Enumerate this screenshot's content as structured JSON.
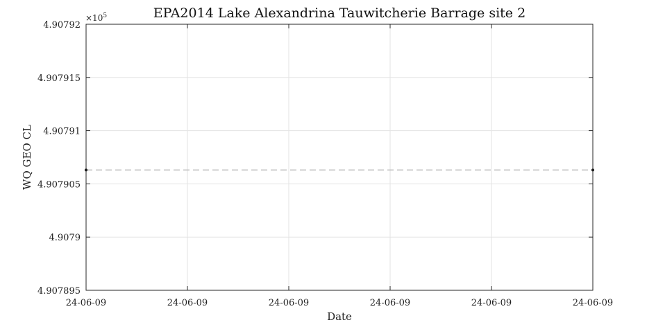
{
  "chart_data": {
    "type": "line",
    "title": "EPA2014 Lake Alexandrina Tauwitcherie Barrage site 2",
    "xlabel": "Date",
    "ylabel": "WQ GEO CL",
    "y_exponent_label": "×10",
    "y_exponent_power": "5",
    "ylim": [
      4.907895,
      4.90792
    ],
    "y_ticks": [
      4.907895,
      4.9079,
      4.907905,
      4.90791,
      4.907915,
      4.90792
    ],
    "y_tick_labels": [
      "4.907895",
      "4.9079",
      "4.907905",
      "4.90791",
      "4.907915",
      "4.90792"
    ],
    "xlim": [
      0,
      5
    ],
    "x_ticks": [
      0,
      1,
      2,
      3,
      4,
      5
    ],
    "x_tick_labels": [
      "24-06-09",
      "24-06-09",
      "24-06-09",
      "24-06-09",
      "24-06-09",
      "24-06-09"
    ],
    "grid": true,
    "series": [
      {
        "x": [
          0,
          5
        ],
        "y": [
          4.9079063,
          4.9079063
        ],
        "line_color": "#bdbdbd",
        "line_style": "dashed",
        "marker_color": "#111111"
      }
    ]
  }
}
